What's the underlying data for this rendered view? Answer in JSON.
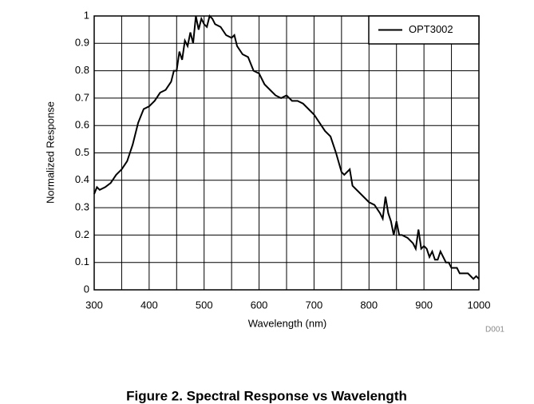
{
  "chart_data": {
    "type": "line",
    "x_label": "Wavelength (nm)",
    "y_label": "Normalized Response",
    "note": "D001",
    "caption": "Figure 2. Spectral Response vs Wavelength",
    "xlim": [
      300,
      1000
    ],
    "xticks": [
      300,
      400,
      500,
      600,
      700,
      800,
      900,
      1000
    ],
    "x_minor_grid": [
      350,
      450,
      550,
      650,
      750,
      850,
      950
    ],
    "ylim": [
      0,
      1
    ],
    "yticks": [
      0,
      0.1,
      0.2,
      0.3,
      0.4,
      0.5,
      0.6,
      0.7,
      0.8,
      0.9,
      1
    ],
    "grid": true,
    "legend": "top-right",
    "series": [
      {
        "name": "OPT3002",
        "color": "#000000",
        "x": [
          300,
          305,
          310,
          320,
          330,
          340,
          350,
          360,
          370,
          380,
          390,
          400,
          410,
          420,
          430,
          440,
          445,
          450,
          455,
          460,
          465,
          470,
          475,
          480,
          485,
          490,
          495,
          500,
          505,
          510,
          515,
          520,
          530,
          540,
          550,
          555,
          560,
          570,
          580,
          590,
          600,
          610,
          620,
          630,
          640,
          650,
          660,
          670,
          680,
          690,
          700,
          710,
          720,
          730,
          740,
          750,
          755,
          760,
          765,
          770,
          780,
          790,
          800,
          810,
          820,
          825,
          830,
          835,
          840,
          845,
          850,
          855,
          860,
          870,
          880,
          885,
          890,
          895,
          900,
          905,
          910,
          915,
          920,
          925,
          930,
          940,
          945,
          950,
          960,
          965,
          970,
          980,
          990,
          995,
          1000
        ],
        "values": [
          0.35,
          0.375,
          0.365,
          0.375,
          0.39,
          0.42,
          0.44,
          0.47,
          0.53,
          0.61,
          0.66,
          0.67,
          0.69,
          0.72,
          0.73,
          0.76,
          0.8,
          0.8,
          0.87,
          0.84,
          0.91,
          0.89,
          0.94,
          0.9,
          1.0,
          0.95,
          0.99,
          0.97,
          0.96,
          1.0,
          0.99,
          0.97,
          0.96,
          0.93,
          0.92,
          0.93,
          0.89,
          0.86,
          0.85,
          0.8,
          0.79,
          0.75,
          0.73,
          0.71,
          0.7,
          0.71,
          0.69,
          0.69,
          0.68,
          0.66,
          0.64,
          0.61,
          0.58,
          0.56,
          0.5,
          0.43,
          0.42,
          0.43,
          0.44,
          0.38,
          0.36,
          0.34,
          0.32,
          0.31,
          0.28,
          0.26,
          0.34,
          0.28,
          0.25,
          0.2,
          0.25,
          0.2,
          0.2,
          0.19,
          0.17,
          0.15,
          0.22,
          0.15,
          0.16,
          0.15,
          0.12,
          0.14,
          0.11,
          0.11,
          0.14,
          0.1,
          0.1,
          0.08,
          0.08,
          0.06,
          0.06,
          0.06,
          0.04,
          0.05,
          0.04
        ]
      }
    ]
  }
}
